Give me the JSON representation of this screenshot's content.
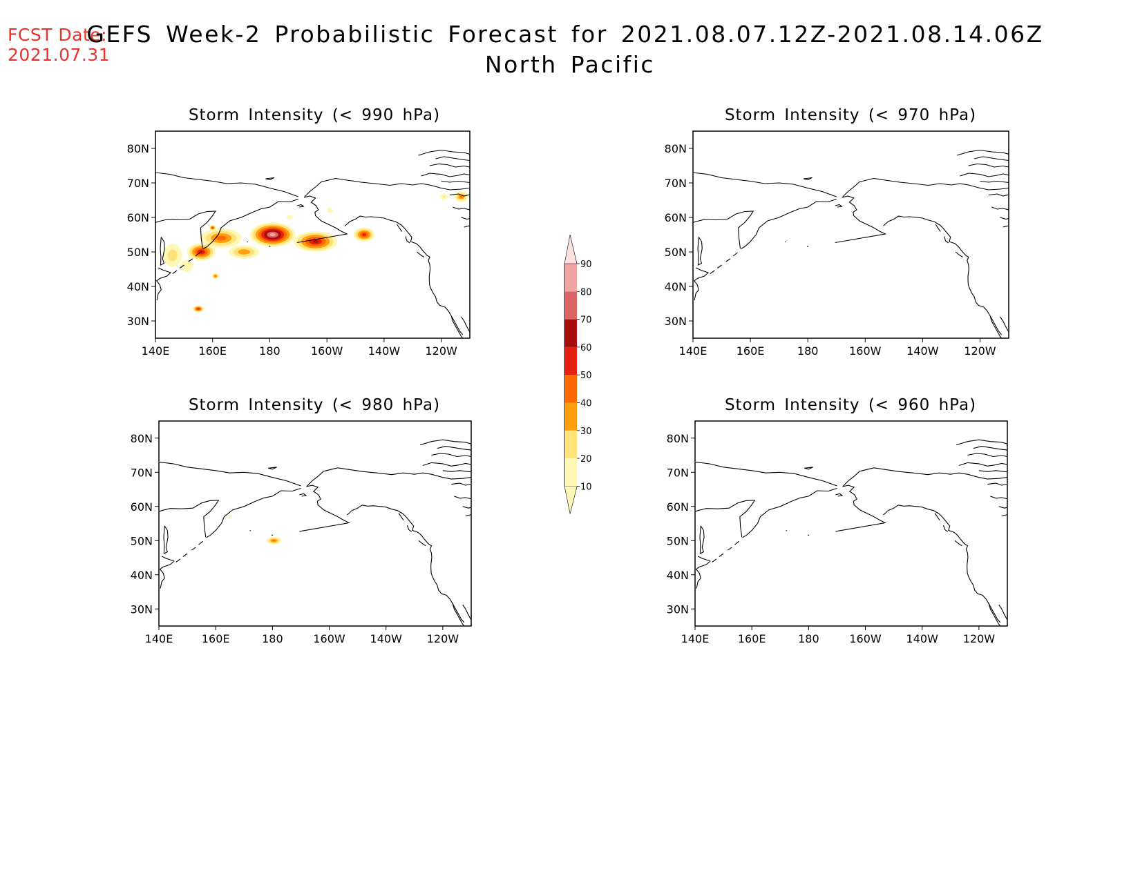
{
  "forecast_date": {
    "label": "FCST Date:",
    "value": "2021.07.31",
    "color": "#e8322a"
  },
  "title": {
    "line1": "GEFS Week-2 Probabilistic Forecast for 2021.08.07.12Z-2021.08.14.06Z",
    "line2": "North Pacific"
  },
  "axes": {
    "lon_ticks": [
      "140E",
      "160E",
      "180",
      "160W",
      "140W",
      "120W"
    ],
    "lat_ticks": [
      "80N",
      "70N",
      "60N",
      "50N",
      "40N",
      "30N"
    ]
  },
  "colorbar": {
    "levels": [
      "10",
      "20",
      "30",
      "40",
      "50",
      "60",
      "70",
      "80",
      "90"
    ],
    "colors": [
      "#fff7b6",
      "#ffe27a",
      "#ff9f10",
      "#ff6a00",
      "#e5200f",
      "#a70e0a",
      "#dd6464",
      "#f2a3a3",
      "#fde0e0"
    ]
  },
  "panels": [
    {
      "title": "Storm Intensity (< 990 hPa)",
      "threshold_hpa": 990
    },
    {
      "title": "Storm Intensity (< 970 hPa)",
      "threshold_hpa": 970
    },
    {
      "title": "Storm Intensity (< 980 hPa)",
      "threshold_hpa": 980
    },
    {
      "title": "Storm Intensity (< 960 hPa)",
      "threshold_hpa": 960
    }
  ],
  "chart_data": [
    {
      "type": "heatmap",
      "title": "Storm Intensity (< 990 hPa)",
      "units": "%",
      "x_range": [
        "140E",
        "110W"
      ],
      "y_range": [
        "25N",
        "85N"
      ],
      "blobs": [
        {
          "lon": 181,
          "lat": 55,
          "rx": 9,
          "ry": 4,
          "max": 85
        },
        {
          "lon": 163,
          "lat": 54,
          "rx": 9,
          "ry": 3.5,
          "max": 45
        },
        {
          "lon": 156,
          "lat": 50,
          "rx": 6,
          "ry": 3,
          "max": 60
        },
        {
          "lon": 196,
          "lat": 53,
          "rx": 9,
          "ry": 3.5,
          "max": 62
        },
        {
          "lon": 213,
          "lat": 55,
          "rx": 4.5,
          "ry": 2.5,
          "max": 55
        },
        {
          "lon": 146,
          "lat": 49,
          "rx": 5,
          "ry": 5,
          "max": 25
        },
        {
          "lon": 151,
          "lat": 46,
          "rx": 4,
          "ry": 3,
          "max": 18
        },
        {
          "lon": 171,
          "lat": 50,
          "rx": 7,
          "ry": 2.5,
          "max": 38
        },
        {
          "lon": 155,
          "lat": 33.5,
          "rx": 2.4,
          "ry": 1.2,
          "max": 58
        },
        {
          "lon": 161,
          "lat": 43,
          "rx": 1.6,
          "ry": 1.2,
          "max": 42
        },
        {
          "lon": 160,
          "lat": 57,
          "rx": 1.5,
          "ry": 1,
          "max": 52
        },
        {
          "lon": 247,
          "lat": 66,
          "rx": 3,
          "ry": 2,
          "max": 42
        },
        {
          "lon": 241,
          "lat": 66,
          "rx": 2,
          "ry": 1.5,
          "max": 20
        },
        {
          "lon": 201,
          "lat": 62,
          "rx": 2,
          "ry": 1.5,
          "max": 15
        },
        {
          "lon": 187,
          "lat": 60,
          "rx": 2.5,
          "ry": 1.2,
          "max": 15
        }
      ]
    },
    {
      "type": "heatmap",
      "title": "Storm Intensity (< 970 hPa)",
      "units": "%",
      "blobs": []
    },
    {
      "type": "heatmap",
      "title": "Storm Intensity (< 980 hPa)",
      "units": "%",
      "blobs": [
        {
          "lon": 180.5,
          "lat": 50,
          "rx": 3.4,
          "ry": 1.4,
          "max": 42
        },
        {
          "lon": 165,
          "lat": 57,
          "rx": 1.2,
          "ry": 0.9,
          "max": 12
        }
      ]
    },
    {
      "type": "heatmap",
      "title": "Storm Intensity (< 960 hPa)",
      "units": "%",
      "blobs": []
    }
  ]
}
